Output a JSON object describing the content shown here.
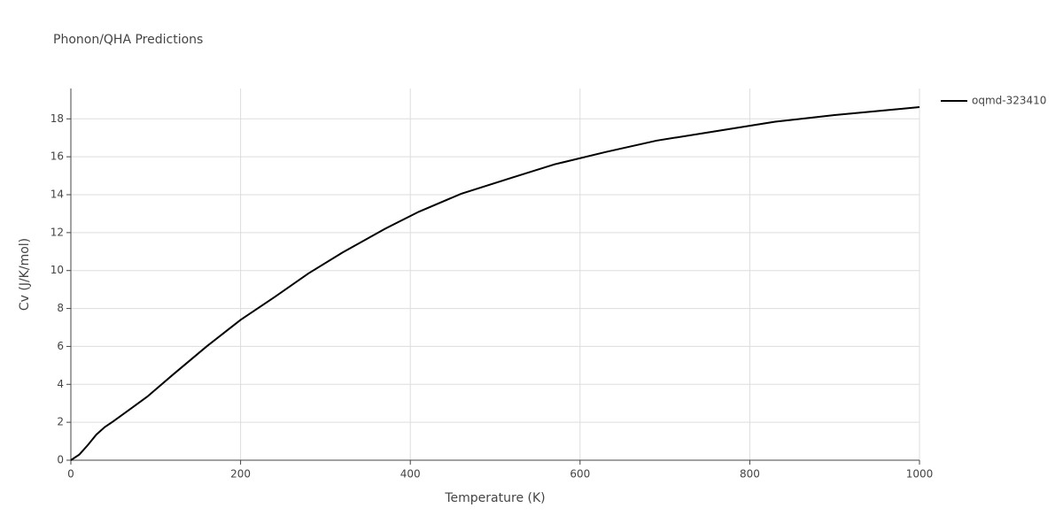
{
  "chart_data": {
    "type": "line",
    "title": "Phonon/QHA Predictions",
    "x_label": "Temperature (K)",
    "y_label": "Cv (J/K/mol)",
    "x": [
      0,
      10,
      20,
      30,
      40,
      50,
      70,
      90,
      120,
      160,
      200,
      240,
      280,
      320,
      370,
      410,
      460,
      520,
      570,
      630,
      690,
      760,
      830,
      900,
      960,
      1000
    ],
    "series": [
      {
        "name": "oqmd-323410",
        "color": "#000000",
        "values": [
          0,
          0.3,
          0.8,
          1.35,
          1.75,
          2.05,
          2.7,
          3.35,
          4.5,
          6.0,
          7.4,
          8.6,
          9.85,
          10.95,
          12.2,
          13.1,
          14.05,
          14.9,
          15.6,
          16.25,
          16.85,
          17.35,
          17.85,
          18.2,
          18.45,
          18.62
        ]
      }
    ],
    "xlim": [
      0,
      1000
    ],
    "xticks": [
      0,
      200,
      400,
      600,
      800,
      1000
    ],
    "ylim": [
      0,
      19.6
    ],
    "yticks": [
      0,
      2,
      4,
      6,
      8,
      10,
      12,
      14,
      16,
      18
    ],
    "grid": true,
    "legend": "right"
  }
}
